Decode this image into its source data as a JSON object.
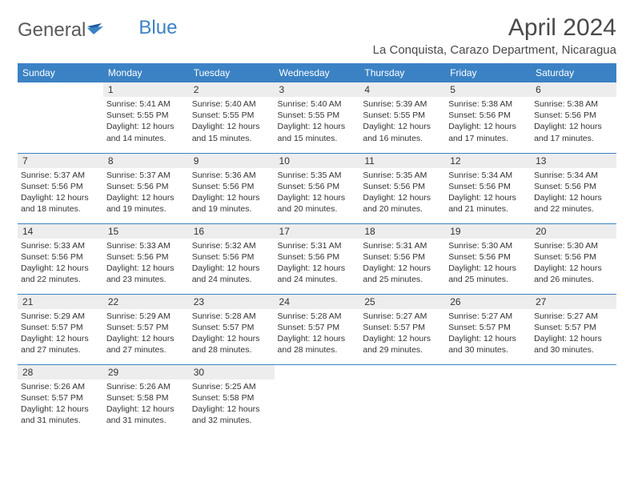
{
  "logo": {
    "text1": "General",
    "text2": "Blue"
  },
  "title": "April 2024",
  "location": "La Conquista, Carazo Department, Nicaragua",
  "colors": {
    "header_bg": "#3b82c4",
    "header_text": "#ffffff",
    "daynum_bg": "#ededed",
    "border": "#3b82c4",
    "logo_gray": "#5a5a5a",
    "logo_blue": "#3b82c4"
  },
  "day_names": [
    "Sunday",
    "Monday",
    "Tuesday",
    "Wednesday",
    "Thursday",
    "Friday",
    "Saturday"
  ],
  "weeks": [
    [
      {
        "n": "",
        "sunrise": "",
        "sunset": "",
        "daylight": ""
      },
      {
        "n": "1",
        "sunrise": "Sunrise: 5:41 AM",
        "sunset": "Sunset: 5:55 PM",
        "daylight": "Daylight: 12 hours and 14 minutes."
      },
      {
        "n": "2",
        "sunrise": "Sunrise: 5:40 AM",
        "sunset": "Sunset: 5:55 PM",
        "daylight": "Daylight: 12 hours and 15 minutes."
      },
      {
        "n": "3",
        "sunrise": "Sunrise: 5:40 AM",
        "sunset": "Sunset: 5:55 PM",
        "daylight": "Daylight: 12 hours and 15 minutes."
      },
      {
        "n": "4",
        "sunrise": "Sunrise: 5:39 AM",
        "sunset": "Sunset: 5:55 PM",
        "daylight": "Daylight: 12 hours and 16 minutes."
      },
      {
        "n": "5",
        "sunrise": "Sunrise: 5:38 AM",
        "sunset": "Sunset: 5:56 PM",
        "daylight": "Daylight: 12 hours and 17 minutes."
      },
      {
        "n": "6",
        "sunrise": "Sunrise: 5:38 AM",
        "sunset": "Sunset: 5:56 PM",
        "daylight": "Daylight: 12 hours and 17 minutes."
      }
    ],
    [
      {
        "n": "7",
        "sunrise": "Sunrise: 5:37 AM",
        "sunset": "Sunset: 5:56 PM",
        "daylight": "Daylight: 12 hours and 18 minutes."
      },
      {
        "n": "8",
        "sunrise": "Sunrise: 5:37 AM",
        "sunset": "Sunset: 5:56 PM",
        "daylight": "Daylight: 12 hours and 19 minutes."
      },
      {
        "n": "9",
        "sunrise": "Sunrise: 5:36 AM",
        "sunset": "Sunset: 5:56 PM",
        "daylight": "Daylight: 12 hours and 19 minutes."
      },
      {
        "n": "10",
        "sunrise": "Sunrise: 5:35 AM",
        "sunset": "Sunset: 5:56 PM",
        "daylight": "Daylight: 12 hours and 20 minutes."
      },
      {
        "n": "11",
        "sunrise": "Sunrise: 5:35 AM",
        "sunset": "Sunset: 5:56 PM",
        "daylight": "Daylight: 12 hours and 20 minutes."
      },
      {
        "n": "12",
        "sunrise": "Sunrise: 5:34 AM",
        "sunset": "Sunset: 5:56 PM",
        "daylight": "Daylight: 12 hours and 21 minutes."
      },
      {
        "n": "13",
        "sunrise": "Sunrise: 5:34 AM",
        "sunset": "Sunset: 5:56 PM",
        "daylight": "Daylight: 12 hours and 22 minutes."
      }
    ],
    [
      {
        "n": "14",
        "sunrise": "Sunrise: 5:33 AM",
        "sunset": "Sunset: 5:56 PM",
        "daylight": "Daylight: 12 hours and 22 minutes."
      },
      {
        "n": "15",
        "sunrise": "Sunrise: 5:33 AM",
        "sunset": "Sunset: 5:56 PM",
        "daylight": "Daylight: 12 hours and 23 minutes."
      },
      {
        "n": "16",
        "sunrise": "Sunrise: 5:32 AM",
        "sunset": "Sunset: 5:56 PM",
        "daylight": "Daylight: 12 hours and 24 minutes."
      },
      {
        "n": "17",
        "sunrise": "Sunrise: 5:31 AM",
        "sunset": "Sunset: 5:56 PM",
        "daylight": "Daylight: 12 hours and 24 minutes."
      },
      {
        "n": "18",
        "sunrise": "Sunrise: 5:31 AM",
        "sunset": "Sunset: 5:56 PM",
        "daylight": "Daylight: 12 hours and 25 minutes."
      },
      {
        "n": "19",
        "sunrise": "Sunrise: 5:30 AM",
        "sunset": "Sunset: 5:56 PM",
        "daylight": "Daylight: 12 hours and 25 minutes."
      },
      {
        "n": "20",
        "sunrise": "Sunrise: 5:30 AM",
        "sunset": "Sunset: 5:56 PM",
        "daylight": "Daylight: 12 hours and 26 minutes."
      }
    ],
    [
      {
        "n": "21",
        "sunrise": "Sunrise: 5:29 AM",
        "sunset": "Sunset: 5:57 PM",
        "daylight": "Daylight: 12 hours and 27 minutes."
      },
      {
        "n": "22",
        "sunrise": "Sunrise: 5:29 AM",
        "sunset": "Sunset: 5:57 PM",
        "daylight": "Daylight: 12 hours and 27 minutes."
      },
      {
        "n": "23",
        "sunrise": "Sunrise: 5:28 AM",
        "sunset": "Sunset: 5:57 PM",
        "daylight": "Daylight: 12 hours and 28 minutes."
      },
      {
        "n": "24",
        "sunrise": "Sunrise: 5:28 AM",
        "sunset": "Sunset: 5:57 PM",
        "daylight": "Daylight: 12 hours and 28 minutes."
      },
      {
        "n": "25",
        "sunrise": "Sunrise: 5:27 AM",
        "sunset": "Sunset: 5:57 PM",
        "daylight": "Daylight: 12 hours and 29 minutes."
      },
      {
        "n": "26",
        "sunrise": "Sunrise: 5:27 AM",
        "sunset": "Sunset: 5:57 PM",
        "daylight": "Daylight: 12 hours and 30 minutes."
      },
      {
        "n": "27",
        "sunrise": "Sunrise: 5:27 AM",
        "sunset": "Sunset: 5:57 PM",
        "daylight": "Daylight: 12 hours and 30 minutes."
      }
    ],
    [
      {
        "n": "28",
        "sunrise": "Sunrise: 5:26 AM",
        "sunset": "Sunset: 5:57 PM",
        "daylight": "Daylight: 12 hours and 31 minutes."
      },
      {
        "n": "29",
        "sunrise": "Sunrise: 5:26 AM",
        "sunset": "Sunset: 5:58 PM",
        "daylight": "Daylight: 12 hours and 31 minutes."
      },
      {
        "n": "30",
        "sunrise": "Sunrise: 5:25 AM",
        "sunset": "Sunset: 5:58 PM",
        "daylight": "Daylight: 12 hours and 32 minutes."
      },
      {
        "n": "",
        "sunrise": "",
        "sunset": "",
        "daylight": ""
      },
      {
        "n": "",
        "sunrise": "",
        "sunset": "",
        "daylight": ""
      },
      {
        "n": "",
        "sunrise": "",
        "sunset": "",
        "daylight": ""
      },
      {
        "n": "",
        "sunrise": "",
        "sunset": "",
        "daylight": ""
      }
    ]
  ]
}
